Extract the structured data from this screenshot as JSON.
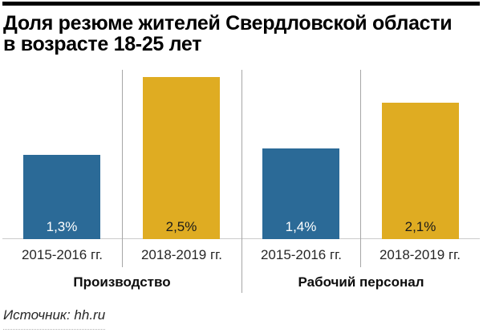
{
  "header": {
    "title_lines": [
      "Доля резюме жителей Свердловской области",
      "в возрасте 18-25 лет"
    ]
  },
  "chart_data": {
    "type": "bar",
    "title": "Доля резюме жителей Свердловской области в возрасте 18-25 лет",
    "xlabel": "",
    "ylabel": "",
    "unit": "%",
    "ylim": [
      0,
      2.5
    ],
    "grid": false,
    "legend": "none",
    "groups": [
      {
        "label": "Производство",
        "bars": [
          {
            "category": "2015-2016 гг.",
            "series": "2015-2016",
            "value": 1.3,
            "value_label": "1,3%"
          },
          {
            "category": "2018-2019 гг.",
            "series": "2018-2019",
            "value": 2.5,
            "value_label": "2,5%"
          }
        ]
      },
      {
        "label": "Рабочий персонал",
        "bars": [
          {
            "category": "2015-2016 гг.",
            "series": "2015-2016",
            "value": 1.4,
            "value_label": "1,4%"
          },
          {
            "category": "2018-2019 гг.",
            "series": "2018-2019",
            "value": 2.1,
            "value_label": "2,1%"
          }
        ]
      }
    ],
    "series_colors": {
      "2015-2016": "#2b6a97",
      "2018-2019": "#dfac22"
    },
    "value_label_colors": {
      "2015-2016": "#ffffff",
      "2018-2019": "#1a1a1a"
    }
  },
  "source": {
    "label": "Источник: hh.ru"
  },
  "colors": {
    "top_rule": "#000000",
    "baseline": "#cbcbcb",
    "separator": "#a6a6a6",
    "accent_blue": "#2b6a97",
    "accent_yellow": "#dfac22"
  }
}
